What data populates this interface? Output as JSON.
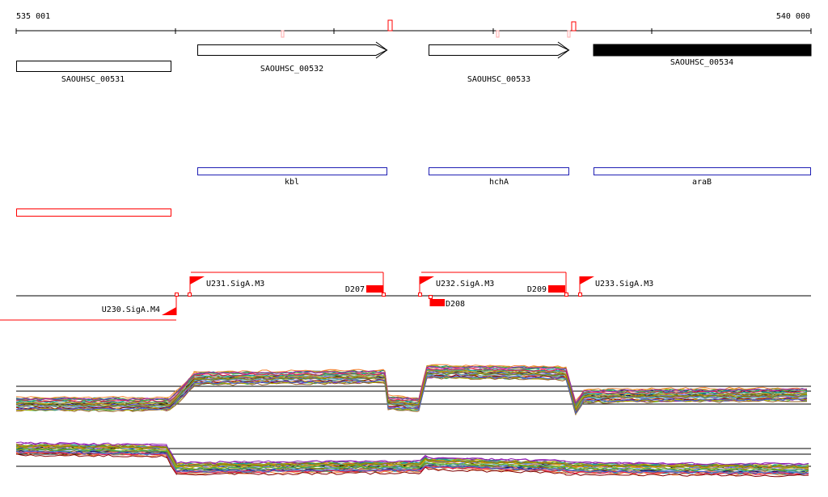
{
  "ruler": {
    "start_label": "535 001",
    "end_label": "540 000"
  },
  "genes": [
    {
      "id": "SAOUHSC_00531",
      "label": "SAOUHSC_00531",
      "style": "box"
    },
    {
      "id": "SAOUHSC_00532",
      "label": "SAOUHSC_00532",
      "style": "arrow"
    },
    {
      "id": "SAOUHSC_00533",
      "label": "SAOUHSC_00533",
      "style": "arrow"
    },
    {
      "id": "SAOUHSC_00534",
      "label": "SAOUHSC_00534",
      "style": "filled"
    }
  ],
  "gene_names": [
    {
      "id": "kbl",
      "label": "kbl"
    },
    {
      "id": "hchA",
      "label": "hchA"
    },
    {
      "id": "araB",
      "label": "araB"
    }
  ],
  "promoters": [
    {
      "id": "U230",
      "label": "U230.SigA.M4"
    },
    {
      "id": "U231",
      "label": "U231.SigA.M3"
    },
    {
      "id": "U232",
      "label": "U232.SigA.M3"
    },
    {
      "id": "U233",
      "label": "U233.SigA.M3"
    }
  ],
  "terminators": [
    {
      "id": "D207",
      "label": "D207"
    },
    {
      "id": "D208",
      "label": "D208"
    },
    {
      "id": "D209",
      "label": "D209"
    }
  ],
  "colors": {
    "gene_outline": "#000000",
    "gene_name_outline": "#1f1fb4",
    "feature": "#ff0000",
    "axis": "#000000"
  }
}
